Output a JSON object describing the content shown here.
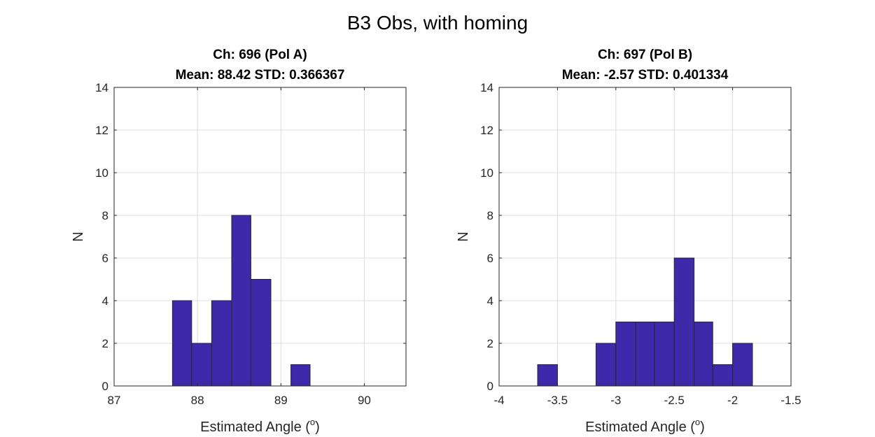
{
  "figure_title": "B3 Obs, with homing",
  "colors": {
    "bar": "#3f29ab"
  },
  "chart_data": [
    {
      "type": "bar",
      "title": [
        "Ch: 696 (Pol A)",
        "Mean: 88.42 STD: 0.366367"
      ],
      "xlabel": "Estimated Angle (",
      "xlabel_sup": "o",
      "xlabel_end": ")",
      "ylabel": "N",
      "xlim": [
        87,
        90.5
      ],
      "ylim": [
        0,
        14
      ],
      "xticks": [
        87,
        88,
        89,
        90
      ],
      "xticklabels": [
        "87",
        "88",
        "89",
        "90"
      ],
      "yticks": [
        0,
        2,
        4,
        6,
        8,
        10,
        12,
        14
      ],
      "yticklabels": [
        "0",
        "2",
        "4",
        "6",
        "8",
        "10",
        "12",
        "14"
      ],
      "grid": true,
      "bin_edges": [
        87.7,
        87.93,
        88.17,
        88.41,
        88.64,
        88.88,
        89.12,
        89.35
      ],
      "counts": [
        4,
        2,
        4,
        8,
        5,
        0,
        1
      ]
    },
    {
      "type": "bar",
      "title": [
        "Ch: 697 (Pol B)",
        "Mean: -2.57 STD: 0.401334"
      ],
      "xlabel": "Estimated Angle (",
      "xlabel_sup": "o",
      "xlabel_end": ")",
      "ylabel": "N",
      "xlim": [
        -4,
        -1.5
      ],
      "ylim": [
        0,
        14
      ],
      "xticks": [
        -4,
        -3.5,
        -3,
        -2.5,
        -2,
        -1.5
      ],
      "xticklabels": [
        "-4",
        "-3.5",
        "-3",
        "-2.5",
        "-2",
        "-1.5"
      ],
      "yticks": [
        0,
        2,
        4,
        6,
        8,
        10,
        12,
        14
      ],
      "yticklabels": [
        "0",
        "2",
        "4",
        "6",
        "8",
        "10",
        "12",
        "14"
      ],
      "grid": true,
      "bin_edges": [
        -3.67,
        -3.5,
        -3.33,
        -3.17,
        -3.0,
        -2.83,
        -2.67,
        -2.5,
        -2.33,
        -2.17,
        -2.0,
        -1.83
      ],
      "counts": [
        1,
        0,
        0,
        2,
        3,
        3,
        3,
        6,
        3,
        1,
        2
      ]
    }
  ]
}
